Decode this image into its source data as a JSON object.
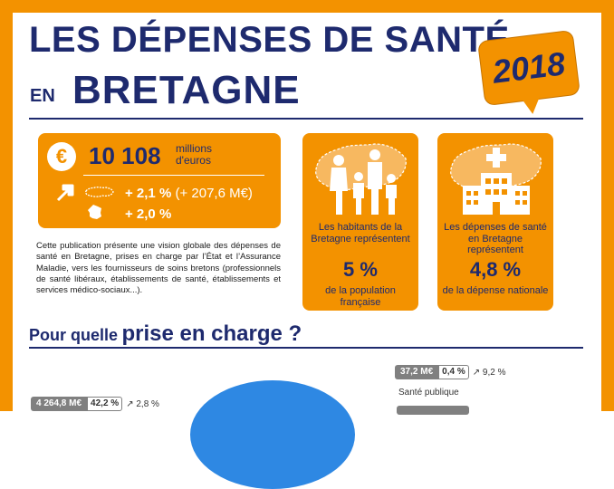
{
  "header": {
    "title_line1": "LES DÉPENSES DE SANTÉ",
    "title_line2_small": "EN",
    "title_line2_big": "BRETAGNE",
    "year": "2018"
  },
  "colors": {
    "accent": "#f39200",
    "navy": "#1e2a6e",
    "pie_blue": "#2e88e3",
    "pill_gray": "#808080"
  },
  "summary": {
    "currency_symbol": "€",
    "amount": "10 108",
    "unit_line1": "millions",
    "unit_line2": "d'euros",
    "growth_bretagne": "+ 2,1 %",
    "growth_bretagne_detail": "(+ 207,6 M€)",
    "growth_france": "+ 2,0 %",
    "icons": [
      "arrow-up-right-icon",
      "bretagne-map-icon",
      "france-map-icon"
    ]
  },
  "intro": "Cette publication présente une vision globale des dépenses de santé en Bretagne, prises en charge par l’État et l’Assurance Maladie, vers les fournisseurs de soins bretons (professionnels de santé libéraux, établissements de santé, établissements et services médico-sociaux...).",
  "cards": [
    {
      "text_top": "Les habitants de la Bretagne représentent",
      "value": "5 %",
      "text_bottom": "de la population française",
      "icon": "family-map-icon"
    },
    {
      "text_top": "Les dépenses de santé en Bretagne représentent",
      "value": "4,8 %",
      "text_bottom": "de la dépense nationale",
      "icon": "hospital-map-icon"
    }
  ],
  "section": {
    "title_small": "Pour quelle",
    "title_big": "prise en charge ?"
  },
  "breakdown": [
    {
      "amount": "37,2 M€",
      "share": "0,4 %",
      "change": "9,2 %",
      "label": "Santé publique"
    },
    {
      "amount": "4 264,8 M€",
      "share": "42,2 %",
      "change": "2,8 %",
      "label": ""
    }
  ]
}
